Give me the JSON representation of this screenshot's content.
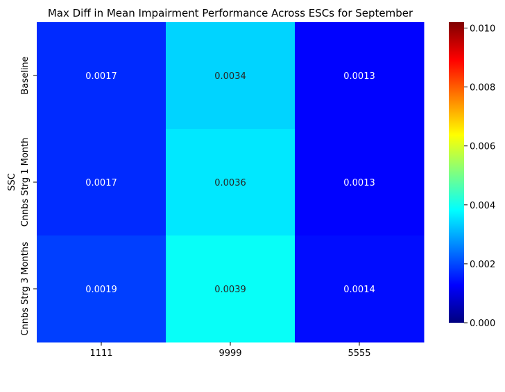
{
  "chart_data": {
    "type": "heatmap",
    "title": "Max Diff in Mean Impairment Performance Across ESCs for September",
    "xlabel": "",
    "ylabel": "SSC",
    "x_categories": [
      "1111",
      "9999",
      "5555"
    ],
    "y_categories": [
      "Baseline",
      "Cnnbs Strg 1 Month",
      "Cnnbs Strg 3 Months"
    ],
    "values": [
      [
        0.0017,
        0.0034,
        0.0013
      ],
      [
        0.0017,
        0.0036,
        0.0013
      ],
      [
        0.0019,
        0.0039,
        0.0014
      ]
    ],
    "cell_labels": [
      [
        "0.0017",
        "0.0034",
        "0.0013"
      ],
      [
        "0.0017",
        "0.0036",
        "0.0013"
      ],
      [
        "0.0019",
        "0.0039",
        "0.0014"
      ]
    ],
    "colormap": "jet",
    "colorbar": {
      "min": 0.0,
      "max": 0.0102,
      "ticks": [
        0.0,
        0.002,
        0.004,
        0.006,
        0.008,
        0.01
      ],
      "tick_labels": [
        "0.000",
        "0.002",
        "0.004",
        "0.006",
        "0.008",
        "0.010"
      ]
    }
  }
}
